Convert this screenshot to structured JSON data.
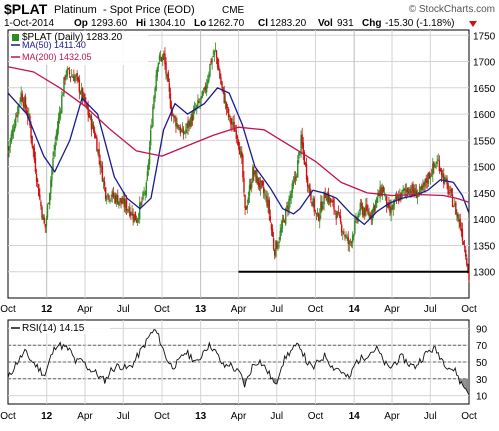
{
  "header": {
    "symbol": "$PLAT",
    "name": "Platinum",
    "subtitle": "- Spot Price (EOD)",
    "exchange": "CME",
    "brand": "© StockCharts.com",
    "date": "1-Oct-2014",
    "op_label": "Op",
    "op_value": "1293.60",
    "hi_label": "Hi",
    "hi_value": "1304.10",
    "lo_label": "Lo",
    "lo_value": "1262.70",
    "cl_label": "Cl",
    "cl_value": "1283.20",
    "vol_label": "Vol",
    "vol_value": "931",
    "chg_label": "Chg",
    "chg_value": "-15.30 (-1.18%)"
  },
  "legend": {
    "price": "$PLAT (Daily) 1283.20",
    "ma50": "MA(50) 1411.40",
    "ma200": "MA(200) 1432.05",
    "rsi": "RSI(14) 14.15"
  },
  "colors": {
    "up": "#2e8b22",
    "down": "#cc1111",
    "ma50": "#1a1a8c",
    "ma200": "#c0144c",
    "grid": "#d4d4d4",
    "support": "#000000",
    "rsi_line": "#111111",
    "rsi_fill": "#8a8a8a",
    "chg_arrow": "#cc1111"
  },
  "chart_data": [
    {
      "type": "candlestick",
      "title": "$PLAT (Daily)",
      "ylim": [
        1250,
        1760
      ],
      "y_ticks": [
        1300,
        1350,
        1400,
        1450,
        1500,
        1550,
        1600,
        1650,
        1700,
        1750
      ],
      "x_ticks": [
        "Oct",
        "12",
        "Apr",
        "Jul",
        "Oct",
        "13",
        "Apr",
        "Jul",
        "Oct",
        "14",
        "Apr",
        "Jul",
        "Oct"
      ],
      "x_range": [
        "2011-10-01",
        "2014-10-01"
      ],
      "grid": true,
      "legend_position": "top-left",
      "close_path": [
        [
          "2011-10-01",
          1530
        ],
        [
          "2011-11-01",
          1640
        ],
        [
          "2011-11-20",
          1590
        ],
        [
          "2011-12-15",
          1440
        ],
        [
          "2011-12-28",
          1380
        ],
        [
          "2012-01-20",
          1540
        ],
        [
          "2012-02-15",
          1680
        ],
        [
          "2012-03-10",
          1670
        ],
        [
          "2012-04-01",
          1620
        ],
        [
          "2012-04-25",
          1560
        ],
        [
          "2012-05-20",
          1450
        ],
        [
          "2012-06-15",
          1440
        ],
        [
          "2012-07-15",
          1420
        ],
        [
          "2012-08-01",
          1400
        ],
        [
          "2012-08-25",
          1460
        ],
        [
          "2012-09-10",
          1620
        ],
        [
          "2012-09-20",
          1700
        ],
        [
          "2012-10-05",
          1710
        ],
        [
          "2012-10-25",
          1600
        ],
        [
          "2012-11-20",
          1560
        ],
        [
          "2012-12-15",
          1600
        ],
        [
          "2013-01-10",
          1640
        ],
        [
          "2013-01-25",
          1700
        ],
        [
          "2013-02-05",
          1720
        ],
        [
          "2013-02-20",
          1650
        ],
        [
          "2013-03-10",
          1590
        ],
        [
          "2013-03-30",
          1560
        ],
        [
          "2013-04-10",
          1500
        ],
        [
          "2013-04-16",
          1410
        ],
        [
          "2013-05-05",
          1490
        ],
        [
          "2013-05-25",
          1460
        ],
        [
          "2013-06-10",
          1430
        ],
        [
          "2013-06-25",
          1340
        ],
        [
          "2013-07-05",
          1360
        ],
        [
          "2013-07-25",
          1420
        ],
        [
          "2013-08-15",
          1480
        ],
        [
          "2013-08-28",
          1550
        ],
        [
          "2013-09-15",
          1460
        ],
        [
          "2013-10-05",
          1400
        ],
        [
          "2013-10-25",
          1450
        ],
        [
          "2013-11-15",
          1420
        ],
        [
          "2013-12-05",
          1380
        ],
        [
          "2013-12-20",
          1350
        ],
        [
          "2014-01-15",
          1420
        ],
        [
          "2014-02-10",
          1410
        ],
        [
          "2014-02-25",
          1440
        ],
        [
          "2014-03-10",
          1460
        ],
        [
          "2014-03-25",
          1410
        ],
        [
          "2014-04-15",
          1440
        ],
        [
          "2014-05-10",
          1460
        ],
        [
          "2014-05-25",
          1450
        ],
        [
          "2014-06-10",
          1450
        ],
        [
          "2014-06-25",
          1480
        ],
        [
          "2014-07-10",
          1500
        ],
        [
          "2014-07-20",
          1510
        ],
        [
          "2014-08-05",
          1470
        ],
        [
          "2014-08-25",
          1430
        ],
        [
          "2014-09-10",
          1390
        ],
        [
          "2014-09-25",
          1330
        ],
        [
          "2014-10-01",
          1283.2
        ]
      ],
      "ma50": [
        [
          "2011-10-01",
          1640
        ],
        [
          "2011-11-15",
          1600
        ],
        [
          "2011-12-25",
          1520
        ],
        [
          "2012-01-20",
          1490
        ],
        [
          "2012-02-25",
          1550
        ],
        [
          "2012-03-25",
          1630
        ],
        [
          "2012-05-01",
          1600
        ],
        [
          "2012-06-10",
          1480
        ],
        [
          "2012-07-10",
          1440
        ],
        [
          "2012-08-10",
          1420
        ],
        [
          "2012-09-05",
          1440
        ],
        [
          "2012-10-05",
          1570
        ],
        [
          "2012-11-01",
          1620
        ],
        [
          "2012-12-01",
          1600
        ],
        [
          "2013-01-10",
          1620
        ],
        [
          "2013-02-10",
          1650
        ],
        [
          "2013-03-10",
          1640
        ],
        [
          "2013-04-10",
          1580
        ],
        [
          "2013-05-10",
          1500
        ],
        [
          "2013-06-15",
          1460
        ],
        [
          "2013-07-15",
          1420
        ],
        [
          "2013-08-10",
          1410
        ],
        [
          "2013-08-25",
          1420
        ],
        [
          "2013-09-25",
          1455
        ],
        [
          "2013-10-20",
          1450
        ],
        [
          "2013-11-20",
          1440
        ],
        [
          "2013-12-25",
          1410
        ],
        [
          "2014-01-25",
          1390
        ],
        [
          "2014-02-25",
          1415
        ],
        [
          "2014-03-25",
          1430
        ],
        [
          "2014-04-25",
          1440
        ],
        [
          "2014-05-25",
          1445
        ],
        [
          "2014-06-25",
          1455
        ],
        [
          "2014-07-25",
          1475
        ],
        [
          "2014-08-25",
          1470
        ],
        [
          "2014-09-15",
          1445
        ],
        [
          "2014-10-01",
          1411.4
        ]
      ],
      "ma200": [
        [
          "2011-10-01",
          1690
        ],
        [
          "2011-12-01",
          1680
        ],
        [
          "2012-02-01",
          1650
        ],
        [
          "2012-04-01",
          1615
        ],
        [
          "2012-06-01",
          1570
        ],
        [
          "2012-08-01",
          1530
        ],
        [
          "2012-10-01",
          1520
        ],
        [
          "2012-12-01",
          1540
        ],
        [
          "2013-02-01",
          1560
        ],
        [
          "2013-04-01",
          1575
        ],
        [
          "2013-06-01",
          1570
        ],
        [
          "2013-08-01",
          1540
        ],
        [
          "2013-10-01",
          1510
        ],
        [
          "2013-12-01",
          1470
        ],
        [
          "2014-02-01",
          1450
        ],
        [
          "2014-04-01",
          1445
        ],
        [
          "2014-06-01",
          1447
        ],
        [
          "2014-08-01",
          1445
        ],
        [
          "2014-09-01",
          1440
        ],
        [
          "2014-10-01",
          1432.05
        ]
      ],
      "annotations": [
        {
          "type": "horizontal_line",
          "y": 1300,
          "from": "2013-04-01",
          "to": "2014-10-01"
        }
      ]
    },
    {
      "type": "line",
      "title": "RSI(14)",
      "ylim": [
        0,
        100
      ],
      "y_ticks": [
        10,
        30,
        50,
        70,
        90
      ],
      "reference_lines": [
        30,
        50,
        70
      ],
      "x_ticks": [
        "Oct",
        "12",
        "Apr",
        "Jul",
        "Oct",
        "13",
        "Apr",
        "Jul",
        "Oct",
        "14",
        "Apr",
        "Jul",
        "Oct"
      ],
      "series": [
        {
          "values": [
            [
              "2011-10-01",
              30
            ],
            [
              "2011-10-20",
              48
            ],
            [
              "2011-11-10",
              62
            ],
            [
              "2011-11-25",
              52
            ],
            [
              "2011-12-10",
              44
            ],
            [
              "2011-12-28",
              34
            ],
            [
              "2012-01-10",
              55
            ],
            [
              "2012-01-25",
              72
            ],
            [
              "2012-02-10",
              68
            ],
            [
              "2012-02-25",
              64
            ],
            [
              "2012-03-10",
              50
            ],
            [
              "2012-03-25",
              52
            ],
            [
              "2012-04-10",
              42
            ],
            [
              "2012-04-25",
              38
            ],
            [
              "2012-05-10",
              30
            ],
            [
              "2012-05-20",
              28
            ],
            [
              "2012-06-01",
              40
            ],
            [
              "2012-06-20",
              46
            ],
            [
              "2012-07-10",
              42
            ],
            [
              "2012-07-25",
              48
            ],
            [
              "2012-08-05",
              58
            ],
            [
              "2012-08-20",
              70
            ],
            [
              "2012-09-05",
              84
            ],
            [
              "2012-09-15",
              88
            ],
            [
              "2012-09-25",
              78
            ],
            [
              "2012-10-10",
              56
            ],
            [
              "2012-10-25",
              44
            ],
            [
              "2012-11-10",
              50
            ],
            [
              "2012-11-25",
              62
            ],
            [
              "2012-12-10",
              56
            ],
            [
              "2012-12-25",
              48
            ],
            [
              "2013-01-10",
              66
            ],
            [
              "2013-01-25",
              70
            ],
            [
              "2013-02-10",
              58
            ],
            [
              "2013-02-25",
              44
            ],
            [
              "2013-03-10",
              48
            ],
            [
              "2013-03-25",
              40
            ],
            [
              "2013-04-05",
              36
            ],
            [
              "2013-04-16",
              22
            ],
            [
              "2013-05-05",
              46
            ],
            [
              "2013-05-20",
              52
            ],
            [
              "2013-06-05",
              42
            ],
            [
              "2013-06-20",
              30
            ],
            [
              "2013-06-28",
              20
            ],
            [
              "2013-07-10",
              44
            ],
            [
              "2013-07-25",
              58
            ],
            [
              "2013-08-10",
              66
            ],
            [
              "2013-08-25",
              70
            ],
            [
              "2013-09-10",
              50
            ],
            [
              "2013-09-25",
              42
            ],
            [
              "2013-10-10",
              52
            ],
            [
              "2013-10-25",
              58
            ],
            [
              "2013-11-10",
              44
            ],
            [
              "2013-11-25",
              42
            ],
            [
              "2013-12-10",
              34
            ],
            [
              "2013-12-20",
              30
            ],
            [
              "2014-01-05",
              50
            ],
            [
              "2014-01-25",
              56
            ],
            [
              "2014-02-10",
              62
            ],
            [
              "2014-02-25",
              66
            ],
            [
              "2014-03-10",
              52
            ],
            [
              "2014-03-25",
              42
            ],
            [
              "2014-04-10",
              50
            ],
            [
              "2014-04-25",
              56
            ],
            [
              "2014-05-10",
              48
            ],
            [
              "2014-05-25",
              44
            ],
            [
              "2014-06-10",
              54
            ],
            [
              "2014-06-25",
              62
            ],
            [
              "2014-07-10",
              66
            ],
            [
              "2014-07-20",
              60
            ],
            [
              "2014-08-05",
              48
            ],
            [
              "2014-08-20",
              42
            ],
            [
              "2014-09-01",
              38
            ],
            [
              "2014-09-10",
              26
            ],
            [
              "2014-09-20",
              20
            ],
            [
              "2014-10-01",
              14.15
            ]
          ]
        }
      ]
    }
  ]
}
